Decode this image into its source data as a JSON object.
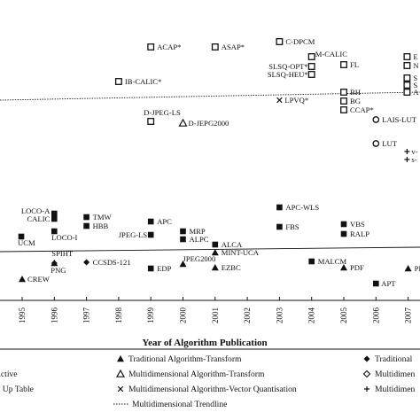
{
  "chart_data": {
    "type": "scatter",
    "xlabel": "Year of Algorithm Publication",
    "ylabel": "",
    "x_ticks": [
      "1995",
      "1996",
      "1997",
      "1998",
      "1999",
      "2000",
      "2001",
      "2002",
      "2003",
      "2004",
      "2005",
      "2006",
      "2007"
    ],
    "xlim": [
      1994.55,
      2007.35
    ],
    "colors": {
      "ink": "#111111"
    },
    "points": [
      {
        "label": "ACAP*",
        "year": 1999,
        "marker": "square-open"
      },
      {
        "label": "ASAP*",
        "year": 2001,
        "marker": "square-open"
      },
      {
        "label": "C-DPCM",
        "year": 2003,
        "marker": "square-open"
      },
      {
        "label": "M-CALIC",
        "year": 2004,
        "marker": "square-open"
      },
      {
        "label": "FL",
        "year": 2005,
        "marker": "square-open"
      },
      {
        "label": "SLSQ-OPT*",
        "year": 2004,
        "marker": "square-open"
      },
      {
        "label": "SLSQ-HEU*",
        "year": 2004,
        "marker": "square-open"
      },
      {
        "label": "IB-CALIC*",
        "year": 1998,
        "marker": "square-open"
      },
      {
        "label": "LPVQ*",
        "year": 2003,
        "marker": "cross"
      },
      {
        "label": "BH",
        "year": 2005,
        "marker": "square-open"
      },
      {
        "label": "BG",
        "year": 2005,
        "marker": "square-open"
      },
      {
        "label": "CCAP*",
        "year": 2005,
        "marker": "square-open"
      },
      {
        "label": "D-JPEG-LS",
        "year": 1999,
        "marker": "square-open"
      },
      {
        "label": "D-JEPG2000",
        "year": 2000,
        "marker": "triangle-open"
      },
      {
        "label": "LAIS-LUT",
        "year": 2006,
        "marker": "circle-open"
      },
      {
        "label": "LUT",
        "year": 2006,
        "marker": "circle-open"
      },
      {
        "label": "E",
        "year": 2007,
        "marker": "square-open"
      },
      {
        "label": "N",
        "year": 2007,
        "marker": "square-open"
      },
      {
        "label": "S",
        "year": 2007,
        "marker": "square-open"
      },
      {
        "label": "S",
        "year": 2007,
        "marker": "square-open"
      },
      {
        "label": "A",
        "year": 2007,
        "marker": "square-open"
      },
      {
        "label": "v-",
        "year": 2007,
        "marker": "plus"
      },
      {
        "label": "s-",
        "year": 2007,
        "marker": "plus"
      },
      {
        "label": "LOCO-A",
        "year": 1996,
        "marker": "square-filled"
      },
      {
        "label": "CALIC",
        "year": 1996,
        "marker": "square-filled"
      },
      {
        "label": "TMW",
        "year": 1997,
        "marker": "square-filled"
      },
      {
        "label": "HBB",
        "year": 1997,
        "marker": "square-filled"
      },
      {
        "label": "APC",
        "year": 1999,
        "marker": "square-filled"
      },
      {
        "label": "APC-WLS",
        "year": 2003,
        "marker": "square-filled"
      },
      {
        "label": "LOCO-I",
        "year": 1996,
        "marker": "square-filled"
      },
      {
        "label": "JPEG-LS",
        "year": 1999,
        "marker": "square-filled"
      },
      {
        "label": "MRP",
        "year": 2000,
        "marker": "square-filled"
      },
      {
        "label": "ALPC",
        "year": 2000,
        "marker": "square-filled"
      },
      {
        "label": "FBS",
        "year": 2003,
        "marker": "square-filled"
      },
      {
        "label": "VBS",
        "year": 2005,
        "marker": "square-filled"
      },
      {
        "label": "RALP",
        "year": 2005,
        "marker": "square-filled"
      },
      {
        "label": "UCM",
        "year": 1995,
        "marker": "square-filled"
      },
      {
        "label": "ALCA",
        "year": 2001,
        "marker": "square-filled"
      },
      {
        "label": "MINT-UCA",
        "year": 2001,
        "marker": "triangle-filled"
      },
      {
        "label": "SPIHT",
        "year": 1996,
        "marker": "triangle-filled"
      },
      {
        "label": "PNG",
        "year": 1996,
        "marker": "diamond-filled"
      },
      {
        "label": "CCSDS-121",
        "year": 1997,
        "marker": "diamond-filled"
      },
      {
        "label": "JPEG2000",
        "year": 2000,
        "marker": "triangle-filled"
      },
      {
        "label": "EDP",
        "year": 1999,
        "marker": "square-filled"
      },
      {
        "label": "EZBC",
        "year": 2001,
        "marker": "triangle-filled"
      },
      {
        "label": "MALCM",
        "year": 2004,
        "marker": "square-filled"
      },
      {
        "label": "PDF",
        "year": 2005,
        "marker": "triangle-filled"
      },
      {
        "label": "PI",
        "year": 2007,
        "marker": "triangle-filled"
      },
      {
        "label": "CREW",
        "year": 1995,
        "marker": "triangle-filled"
      },
      {
        "label": "APT",
        "year": 2006,
        "marker": "square-filled"
      }
    ],
    "trendlines": [
      {
        "name": "Multidimensional Trendline",
        "style": "dotted"
      },
      {
        "name": "",
        "style": "solid"
      }
    ],
    "legend": {
      "placement": "bottom",
      "entries": [
        {
          "marker": "none",
          "label": "ve"
        },
        {
          "marker": "triangle-filled",
          "label": "Traditional Algorithm-Transform"
        },
        {
          "marker": "diamond-filled",
          "label": "Traditional"
        },
        {
          "marker": "none",
          "label": "redictive"
        },
        {
          "marker": "triangle-open",
          "label": "Multidimensional Algorithm-Transform"
        },
        {
          "marker": "diamond-open",
          "label": "Multidimen"
        },
        {
          "marker": "none",
          "label": "ook Up Table"
        },
        {
          "marker": "cross",
          "label": "Multidimensional Algorithm-Vector Quantisation"
        },
        {
          "marker": "plus",
          "label": "Multidimen"
        },
        {
          "marker": "line-dotted",
          "label": "Multidimensional Trendline"
        }
      ]
    }
  }
}
